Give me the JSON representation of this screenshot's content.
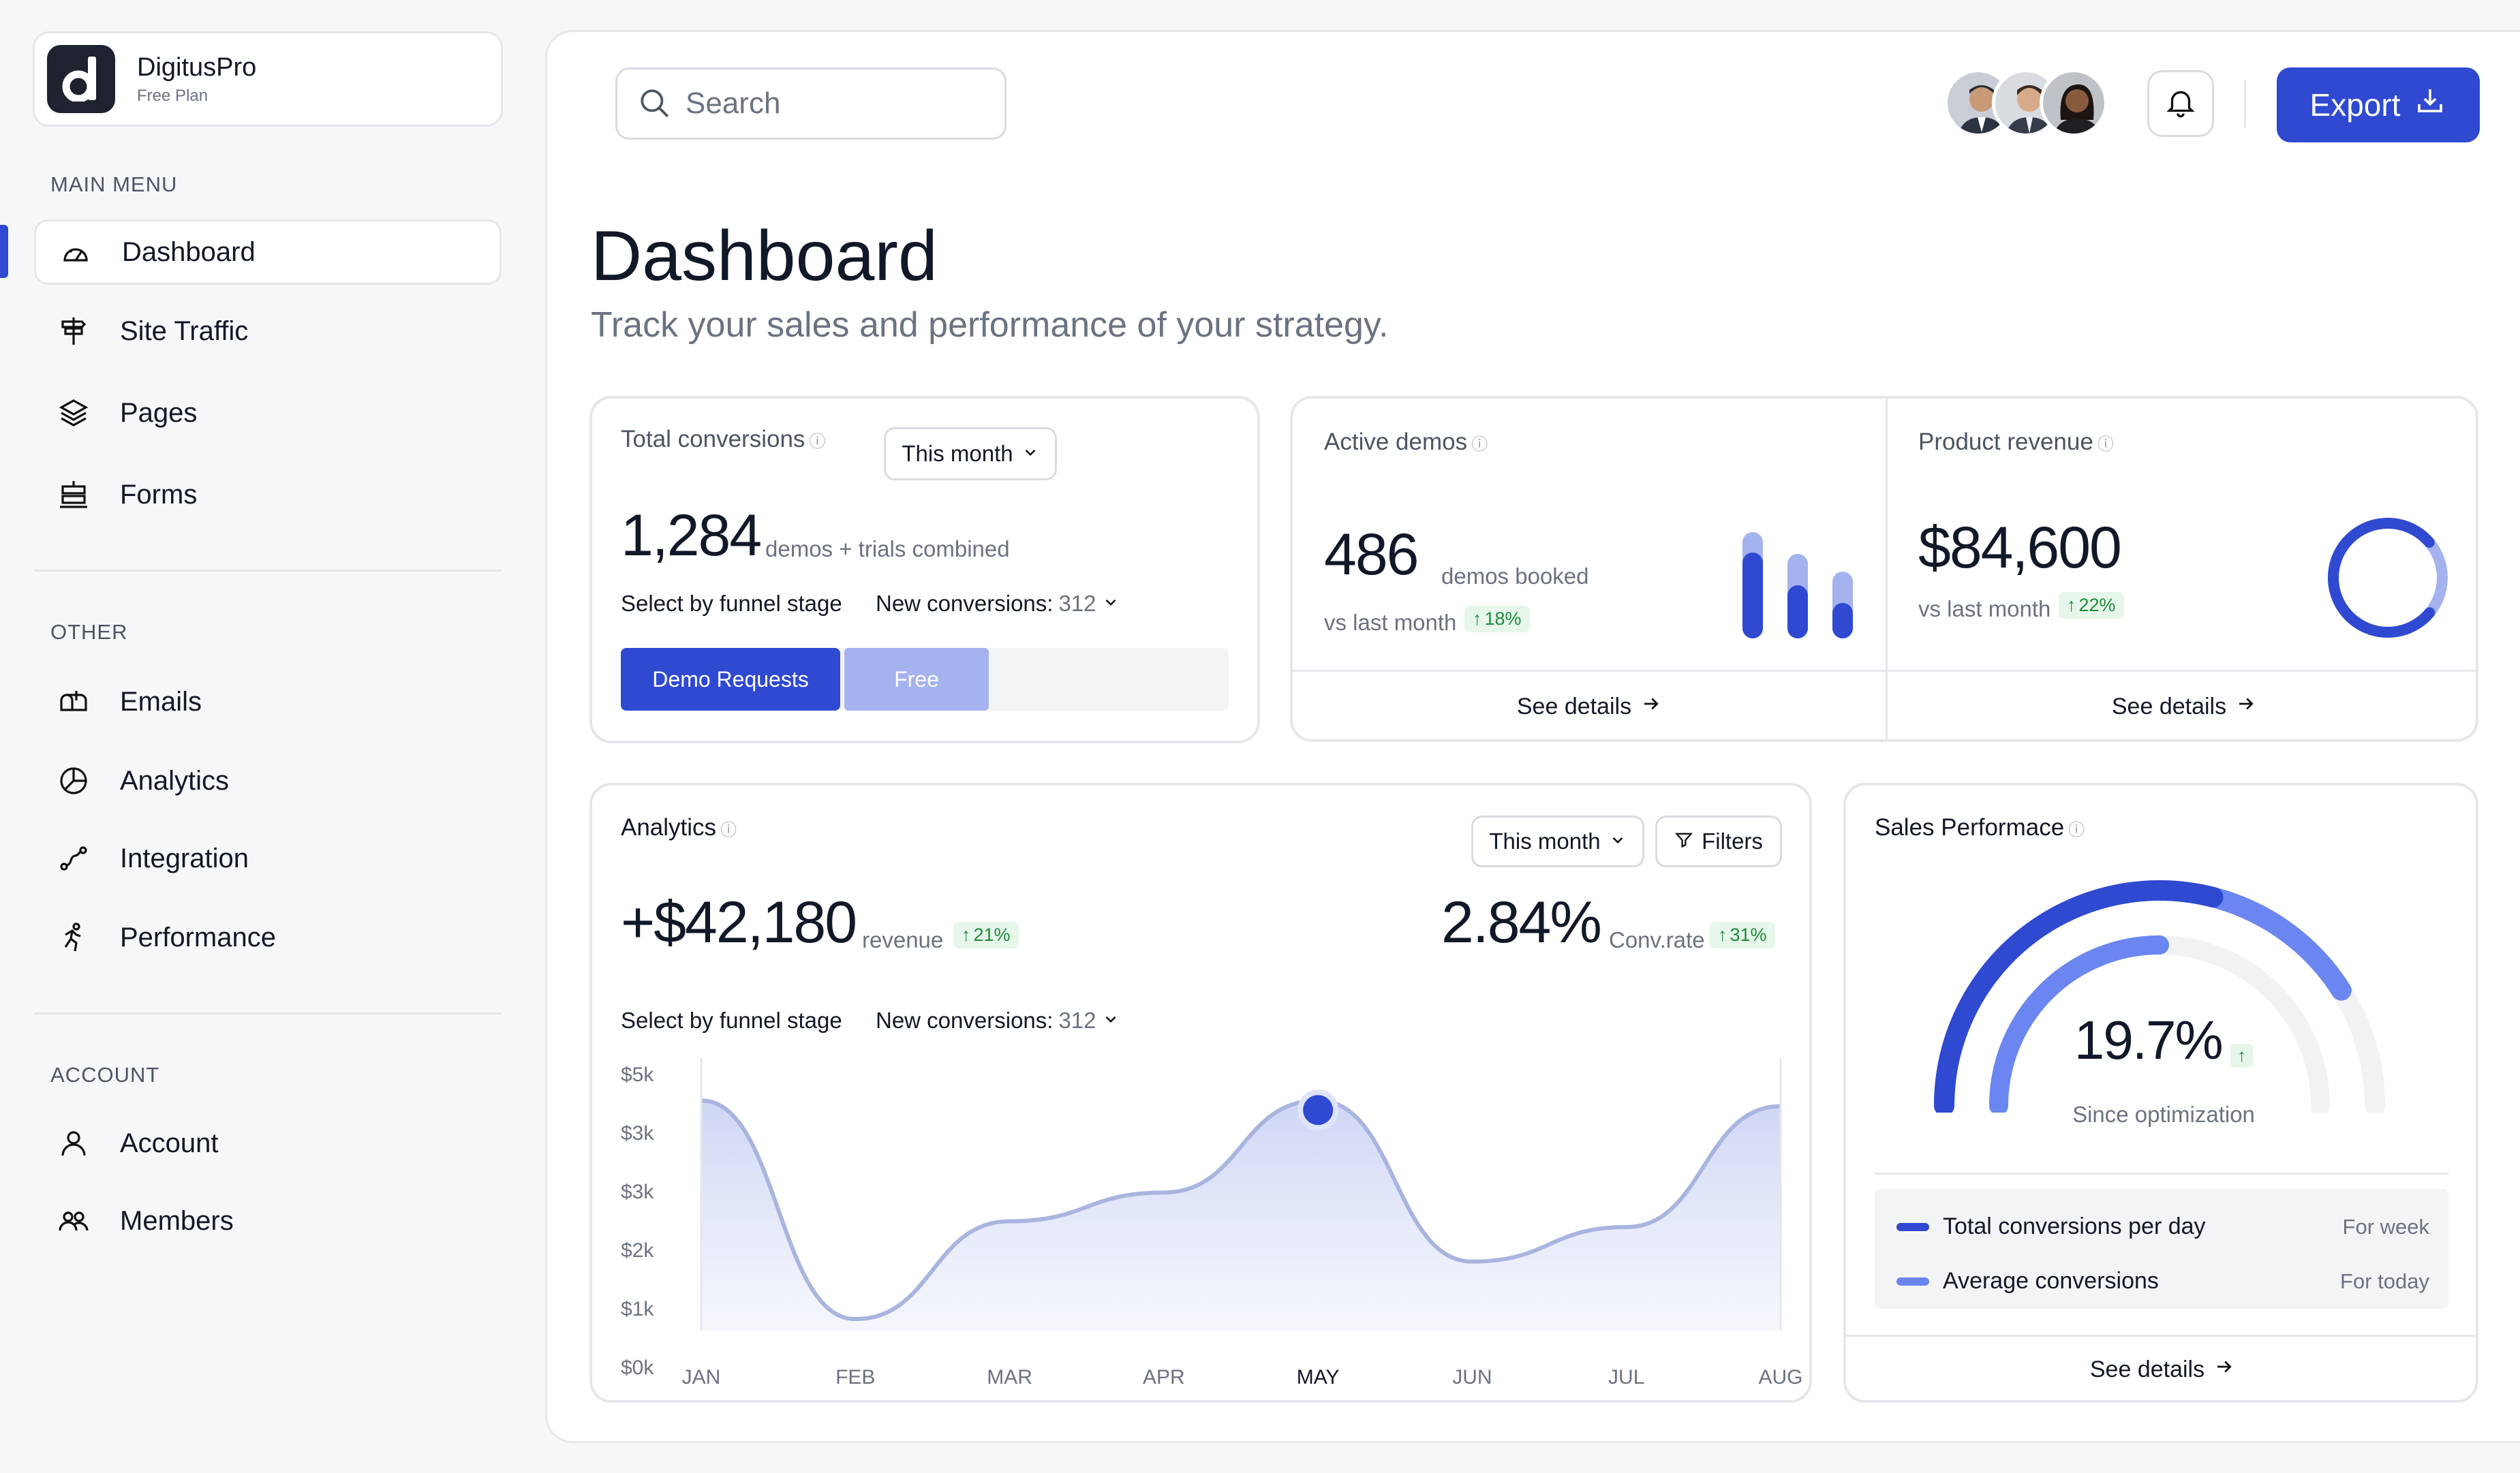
{
  "app": {
    "name": "DigitusPro",
    "plan": "Free Plan"
  },
  "sidebar": {
    "main_menu_label": "MAIN MENU",
    "main_items": [
      {
        "label": "Dashboard",
        "icon": "gauge-icon",
        "active": true
      },
      {
        "label": "Site Traffic",
        "icon": "signpost-icon"
      },
      {
        "label": "Pages",
        "icon": "layers-icon"
      },
      {
        "label": "Forms",
        "icon": "form-icon"
      }
    ],
    "other_label": "OTHER",
    "other_items": [
      {
        "label": "Emails",
        "icon": "mailbox-icon"
      },
      {
        "label": "Analytics",
        "icon": "pie-chart-icon"
      },
      {
        "label": "Integration",
        "icon": "route-icon"
      },
      {
        "label": "Performance",
        "icon": "running-icon"
      }
    ],
    "account_label": "ACCOUNT",
    "account_items": [
      {
        "label": "Account",
        "icon": "user-icon"
      },
      {
        "label": "Members",
        "icon": "users-icon"
      }
    ]
  },
  "header": {
    "search_placeholder": "Search",
    "export_label": "Export",
    "accent_color": "#2f49d1"
  },
  "page": {
    "title": "Dashboard",
    "subtitle": "Track your sales and performance of your strategy."
  },
  "conversions": {
    "title": "Total conversions",
    "period": "This month",
    "value": "1,284",
    "value_note": "demos + trials combined",
    "funnel_label": "Select by funnel stage",
    "new_conv_label": "New conversions:",
    "new_conv_value": "312",
    "seg_demo": "Demo Requests",
    "seg_free": "Free"
  },
  "demos": {
    "title": "Active demos",
    "value": "486",
    "value_note": "demos booked",
    "compare": "vs last month",
    "badge": "18%",
    "see_details": "See details"
  },
  "revenue": {
    "title": "Product revenue",
    "value": "$84,600",
    "compare": "vs last month",
    "badge": "22%",
    "see_details": "See details"
  },
  "analytics": {
    "title": "Analytics",
    "period": "This month",
    "filters": "Filters",
    "revenue_value": "+$42,180",
    "revenue_note": "revenue",
    "revenue_badge": "21%",
    "conv_value": "2.84%",
    "conv_note": "Conv.rate",
    "conv_badge": "31%",
    "funnel_label": "Select by funnel stage",
    "new_conv_label": "New conversions:",
    "new_conv_value": "312"
  },
  "chart_data": {
    "type": "area",
    "categories": [
      "JAN",
      "FEB",
      "MAR",
      "APR",
      "MAY",
      "JUN",
      "JUL",
      "AUG"
    ],
    "y_tick_labels": [
      "$5k",
      "$3k",
      "$3k",
      "$2k",
      "$1k",
      "$0k"
    ],
    "highlight_category": "MAY",
    "series": [
      {
        "values": [
          4.0,
          0.2,
          1.9,
          2.4,
          4.0,
          1.2,
          1.8,
          3.9
        ],
        "color": "#a9b4df"
      }
    ],
    "ylim": [
      0,
      4.5
    ],
    "grid": false
  },
  "sales": {
    "title": "Sales Performace",
    "value": "19.7%",
    "note": "Since optimization",
    "legend": [
      {
        "label": "Total conversions per day",
        "period": "For week",
        "color": "#2f49d1"
      },
      {
        "label": "Average conversions",
        "period": "For today",
        "color": "#6b86f0"
      }
    ],
    "outer_fraction": 0.58,
    "inner_fraction": 0.5,
    "see_details": "See details"
  }
}
